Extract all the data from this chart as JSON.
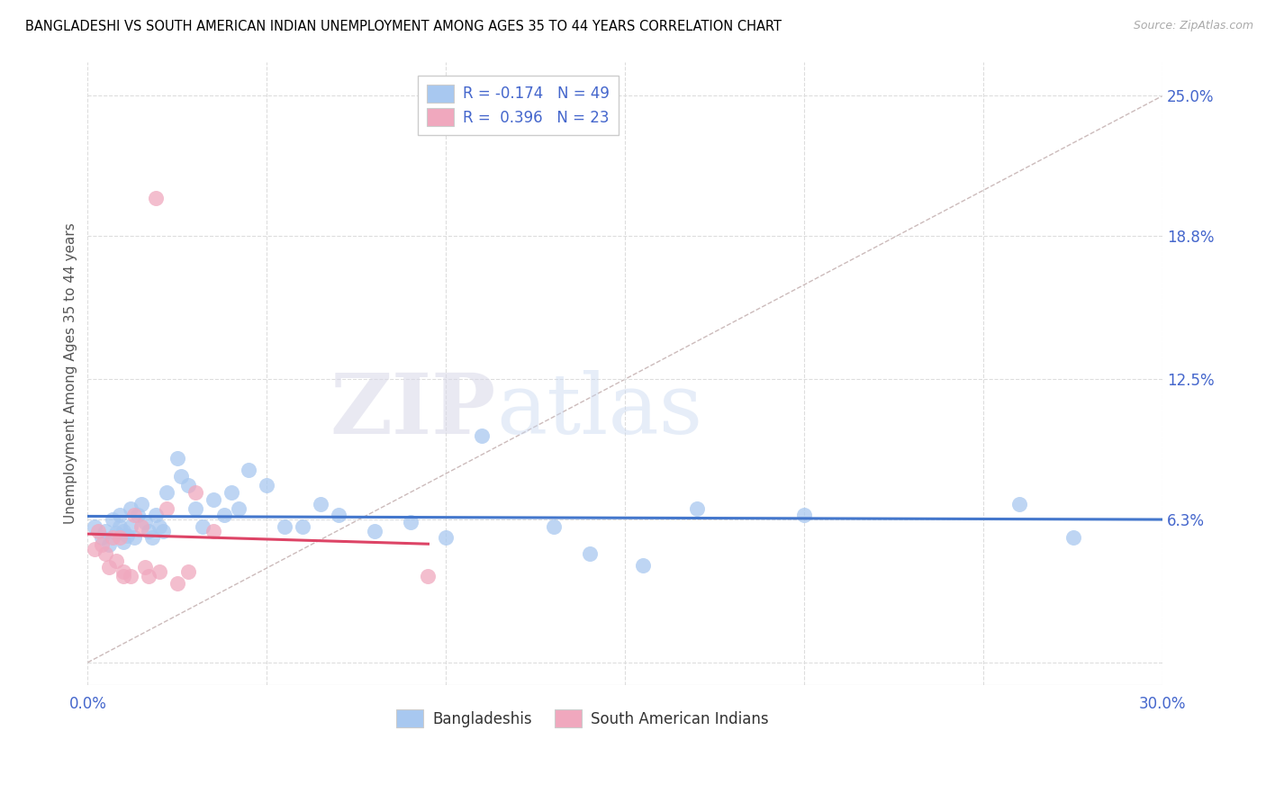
{
  "title": "BANGLADESHI VS SOUTH AMERICAN INDIAN UNEMPLOYMENT AMONG AGES 35 TO 44 YEARS CORRELATION CHART",
  "source": "Source: ZipAtlas.com",
  "ylabel": "Unemployment Among Ages 35 to 44 years",
  "xlim": [
    0,
    0.3
  ],
  "ylim": [
    -0.01,
    0.265
  ],
  "xticks": [
    0.0,
    0.05,
    0.1,
    0.15,
    0.2,
    0.25,
    0.3
  ],
  "xticklabels_visible": [
    "0.0%",
    "",
    "",
    "",
    "",
    "",
    "30.0%"
  ],
  "yticks": [
    0.0,
    0.063,
    0.125,
    0.188,
    0.25
  ],
  "yticklabels": [
    "",
    "6.3%",
    "12.5%",
    "18.8%",
    "25.0%"
  ],
  "blue_R": -0.174,
  "blue_N": 49,
  "pink_R": 0.396,
  "pink_N": 23,
  "blue_color": "#a8c8f0",
  "pink_color": "#f0a8be",
  "blue_line_color": "#4477cc",
  "pink_line_color": "#dd4466",
  "watermark_zip": "ZIP",
  "watermark_atlas": "atlas",
  "legend_label_blue": "Bangladeshis",
  "legend_label_pink": "South American Indians",
  "blue_scatter_x": [
    0.002,
    0.004,
    0.005,
    0.006,
    0.007,
    0.008,
    0.009,
    0.009,
    0.01,
    0.01,
    0.011,
    0.012,
    0.012,
    0.013,
    0.014,
    0.015,
    0.016,
    0.017,
    0.018,
    0.019,
    0.02,
    0.021,
    0.022,
    0.025,
    0.026,
    0.028,
    0.03,
    0.032,
    0.035,
    0.038,
    0.04,
    0.042,
    0.045,
    0.05,
    0.055,
    0.06,
    0.065,
    0.07,
    0.08,
    0.09,
    0.1,
    0.11,
    0.13,
    0.14,
    0.155,
    0.17,
    0.2,
    0.26,
    0.275
  ],
  "blue_scatter_y": [
    0.06,
    0.055,
    0.058,
    0.052,
    0.063,
    0.057,
    0.06,
    0.065,
    0.053,
    0.058,
    0.056,
    0.06,
    0.068,
    0.055,
    0.065,
    0.07,
    0.062,
    0.058,
    0.055,
    0.065,
    0.06,
    0.058,
    0.075,
    0.09,
    0.082,
    0.078,
    0.068,
    0.06,
    0.072,
    0.065,
    0.075,
    0.068,
    0.085,
    0.078,
    0.06,
    0.06,
    0.07,
    0.065,
    0.058,
    0.062,
    0.055,
    0.1,
    0.06,
    0.048,
    0.043,
    0.068,
    0.065,
    0.07,
    0.055
  ],
  "pink_scatter_x": [
    0.002,
    0.003,
    0.004,
    0.005,
    0.006,
    0.007,
    0.008,
    0.009,
    0.01,
    0.01,
    0.012,
    0.013,
    0.015,
    0.016,
    0.017,
    0.02,
    0.022,
    0.025,
    0.028,
    0.03,
    0.035,
    0.095,
    0.019
  ],
  "pink_scatter_y": [
    0.05,
    0.058,
    0.052,
    0.048,
    0.042,
    0.055,
    0.045,
    0.055,
    0.038,
    0.04,
    0.038,
    0.065,
    0.06,
    0.042,
    0.038,
    0.04,
    0.068,
    0.035,
    0.04,
    0.075,
    0.058,
    0.038,
    0.205
  ],
  "diag_line_color": "#ccbbbb",
  "grid_color": "#dddddd"
}
